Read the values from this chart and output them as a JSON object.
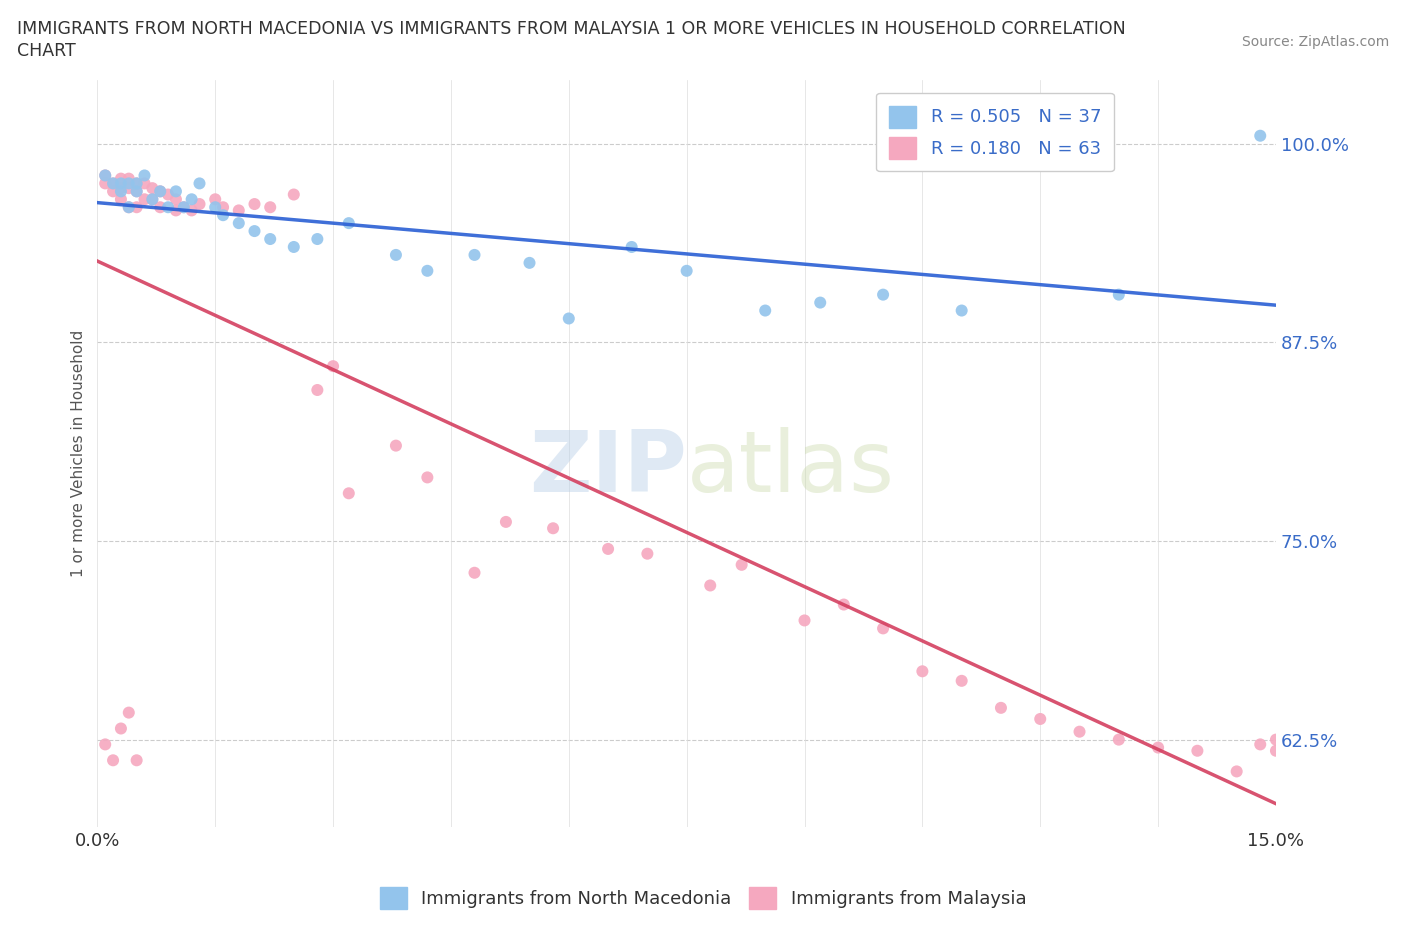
{
  "title_line1": "IMMIGRANTS FROM NORTH MACEDONIA VS IMMIGRANTS FROM MALAYSIA 1 OR MORE VEHICLES IN HOUSEHOLD CORRELATION",
  "title_line2": "CHART",
  "source": "Source: ZipAtlas.com",
  "watermark_zip": "ZIP",
  "watermark_atlas": "atlas",
  "legend_blue_label": "Immigrants from North Macedonia",
  "legend_pink_label": "Immigrants from Malaysia",
  "R_blue": 0.505,
  "N_blue": 37,
  "R_pink": 0.18,
  "N_pink": 63,
  "blue_color": "#93c4ec",
  "pink_color": "#f5a8bf",
  "blue_line_color": "#2a5fd4",
  "pink_line_color": "#d44060",
  "blue_x": [
    0.001,
    0.002,
    0.003,
    0.003,
    0.004,
    0.004,
    0.005,
    0.005,
    0.006,
    0.007,
    0.008,
    0.009,
    0.01,
    0.011,
    0.012,
    0.013,
    0.015,
    0.016,
    0.018,
    0.02,
    0.022,
    0.025,
    0.028,
    0.032,
    0.038,
    0.042,
    0.048,
    0.055,
    0.06,
    0.068,
    0.075,
    0.085,
    0.092,
    0.1,
    0.11,
    0.13,
    0.148
  ],
  "blue_y": [
    0.98,
    0.975,
    0.975,
    0.97,
    0.975,
    0.96,
    0.97,
    0.975,
    0.98,
    0.965,
    0.97,
    0.96,
    0.97,
    0.96,
    0.965,
    0.975,
    0.96,
    0.955,
    0.95,
    0.945,
    0.94,
    0.935,
    0.94,
    0.95,
    0.93,
    0.92,
    0.93,
    0.925,
    0.89,
    0.935,
    0.92,
    0.895,
    0.9,
    0.905,
    0.895,
    0.905,
    1.005
  ],
  "pink_x": [
    0.001,
    0.001,
    0.002,
    0.002,
    0.003,
    0.003,
    0.003,
    0.004,
    0.004,
    0.004,
    0.005,
    0.005,
    0.005,
    0.006,
    0.006,
    0.007,
    0.007,
    0.008,
    0.008,
    0.009,
    0.01,
    0.01,
    0.011,
    0.012,
    0.013,
    0.015,
    0.016,
    0.018,
    0.02,
    0.022,
    0.025,
    0.028,
    0.03,
    0.032,
    0.038,
    0.042,
    0.048,
    0.052,
    0.058,
    0.065,
    0.07,
    0.078,
    0.082,
    0.09,
    0.095,
    0.1,
    0.105,
    0.11,
    0.115,
    0.12,
    0.125,
    0.13,
    0.135,
    0.14,
    0.145,
    0.148,
    0.15,
    0.15,
    0.001,
    0.002,
    0.003,
    0.004,
    0.005
  ],
  "pink_y": [
    0.98,
    0.975,
    0.975,
    0.97,
    0.978,
    0.972,
    0.965,
    0.978,
    0.972,
    0.96,
    0.975,
    0.97,
    0.96,
    0.975,
    0.965,
    0.972,
    0.965,
    0.97,
    0.96,
    0.968,
    0.965,
    0.958,
    0.96,
    0.958,
    0.962,
    0.965,
    0.96,
    0.958,
    0.962,
    0.96,
    0.968,
    0.845,
    0.86,
    0.78,
    0.81,
    0.79,
    0.73,
    0.762,
    0.758,
    0.745,
    0.742,
    0.722,
    0.735,
    0.7,
    0.71,
    0.695,
    0.668,
    0.662,
    0.645,
    0.638,
    0.63,
    0.625,
    0.62,
    0.618,
    0.605,
    0.622,
    0.625,
    0.618,
    0.622,
    0.612,
    0.632,
    0.642,
    0.612
  ],
  "xlim": [
    0,
    0.15
  ],
  "ylim": [
    0.57,
    1.04
  ],
  "ytick_vals": [
    0.625,
    0.75,
    0.875,
    1.0
  ],
  "ytick_labels": [
    "62.5%",
    "75.0%",
    "87.5%",
    "100.0%"
  ],
  "xtick_vals": [
    0.0,
    0.015,
    0.03,
    0.045,
    0.06,
    0.075,
    0.09,
    0.105,
    0.12,
    0.135,
    0.15
  ],
  "xtick_labels": [
    "0.0%",
    "",
    "",
    "",
    "",
    "",
    "",
    "",
    "",
    "",
    "15.0%"
  ],
  "ylabel": "1 or more Vehicles in Household"
}
